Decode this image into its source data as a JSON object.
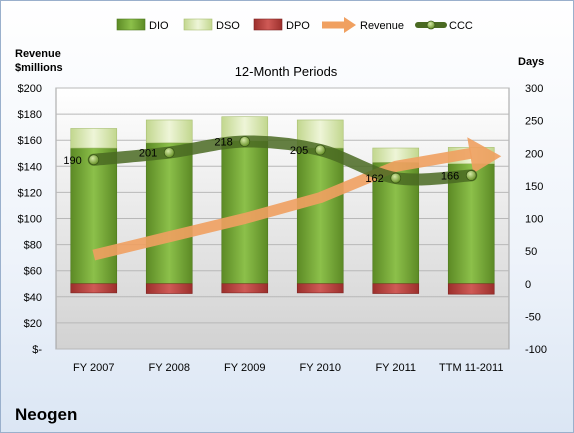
{
  "company": "Neogen",
  "chart_data": {
    "type": "bar",
    "title": "12-Month Periods",
    "left_axis_label_line1": "Revenue",
    "left_axis_label_line2": "$millions",
    "right_axis_label": "Days",
    "categories": [
      "FY 2007",
      "FY 2008",
      "FY 2009",
      "FY 2010",
      "FY 2011",
      "TTM 11-2011"
    ],
    "ylim_days": [
      -100,
      300
    ],
    "ylim_revenue": [
      0,
      200
    ],
    "left_ticks": [
      "$-",
      "$20",
      "$40",
      "$60",
      "$80",
      "$100",
      "$120",
      "$140",
      "$160",
      "$180",
      "$200"
    ],
    "right_ticks": [
      "-100",
      "-50",
      "0",
      "50",
      "100",
      "150",
      "200",
      "250",
      "300"
    ],
    "grid": true,
    "legend_position": "top",
    "series": [
      {
        "name": "DIO",
        "axis": "days",
        "values": [
          208,
          216,
          219,
          208,
          186,
          184
        ],
        "color": "#77a33a"
      },
      {
        "name": "DSO",
        "axis": "days",
        "values": [
          30,
          35,
          37,
          43,
          22,
          25
        ],
        "color": "#d7e6b0"
      },
      {
        "name": "DPO",
        "axis": "days",
        "values": [
          -14,
          -15,
          -14,
          -14,
          -15,
          -16
        ],
        "color": "#c0504d"
      },
      {
        "name": "Revenue",
        "axis": "revenue",
        "values": [
          72,
          86,
          100,
          116,
          140,
          150
        ],
        "color": "#f0a060"
      },
      {
        "name": "CCC",
        "axis": "days",
        "values": [
          190,
          201,
          218,
          205,
          162,
          166
        ],
        "color": "#4a6a22"
      }
    ],
    "ccc_labels": [
      "190",
      "201",
      "218",
      "205",
      "162",
      "166"
    ]
  }
}
